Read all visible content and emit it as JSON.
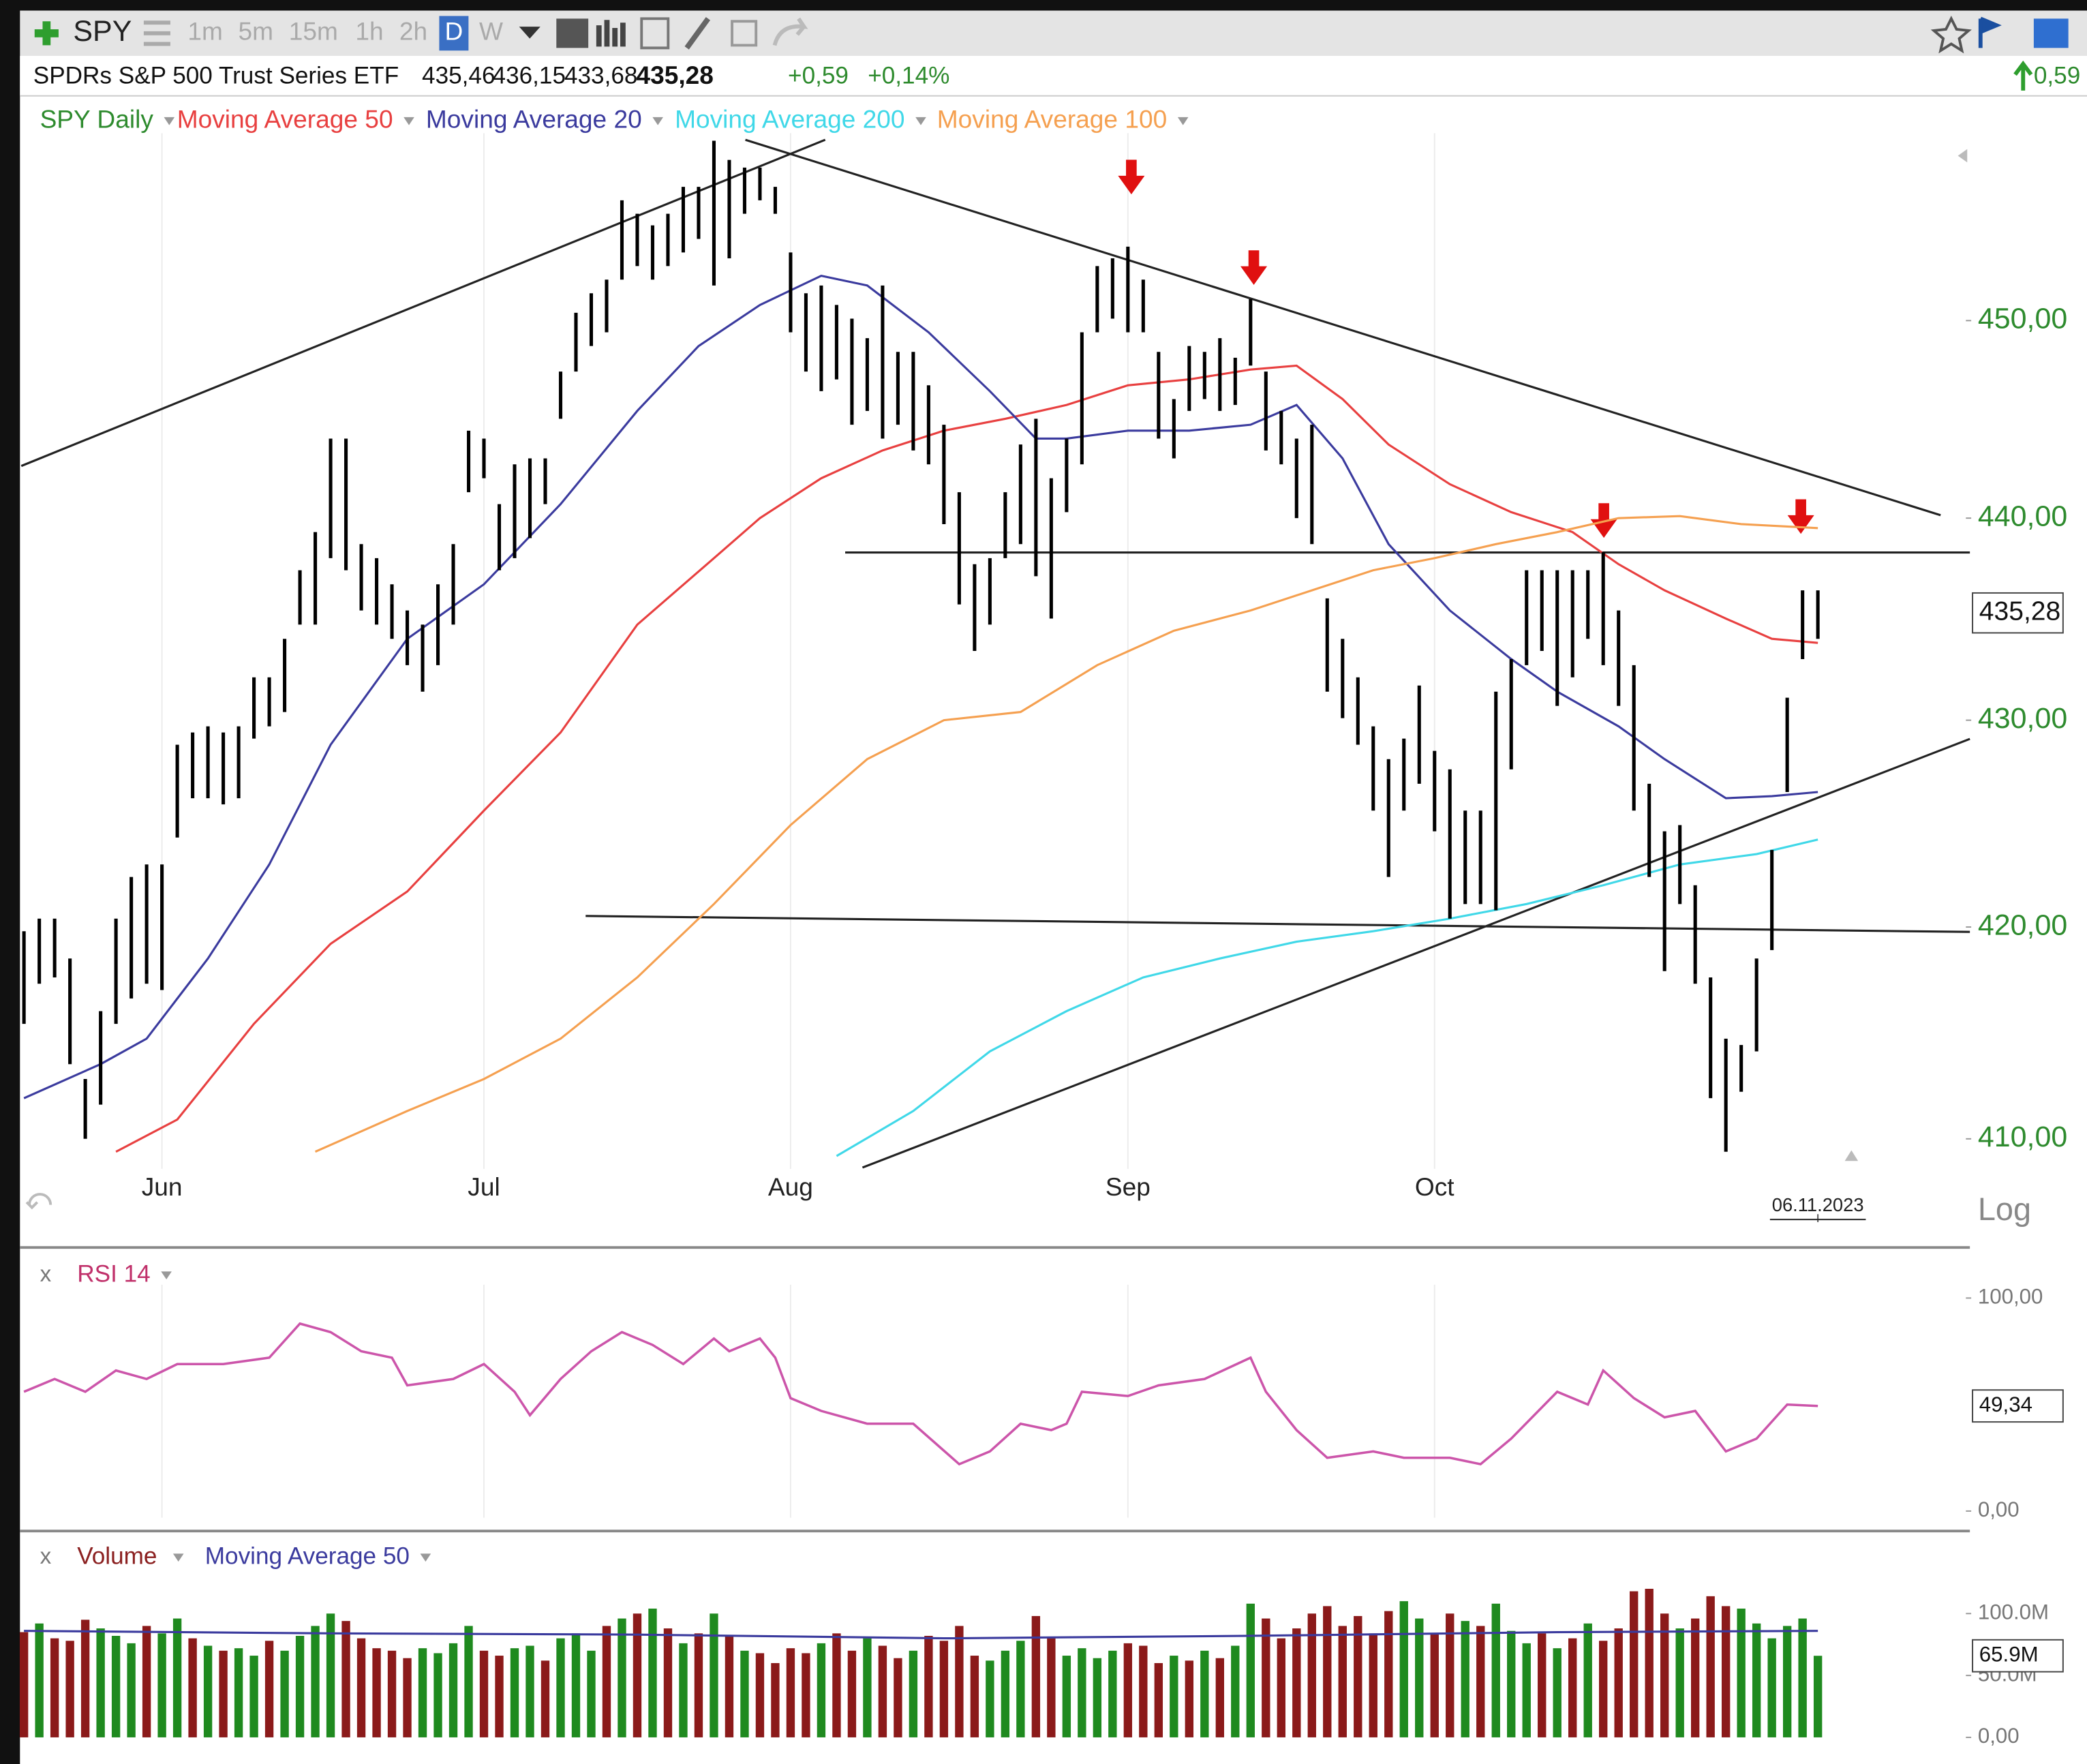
{
  "toolbar": {
    "symbol": "SPY",
    "intervals": [
      "1m",
      "5m",
      "15m",
      "1h",
      "2h",
      "D",
      "W"
    ]
  },
  "quote": {
    "name": "SPDRs S&P 500 Trust Series ETF",
    "open": "435,46",
    "high": "436,15",
    "low": "433,68",
    "last": "435,28",
    "change": "+0,59",
    "change_pct": "+0,14%",
    "change_right": "0,59"
  },
  "chart_data": [
    {
      "type": "ohlc",
      "name": "SPY Daily",
      "color": "#000000",
      "legend_color": "#2e8b2e",
      "log": true,
      "scale_label": "Log",
      "grid": true,
      "high": [
        419.8,
        420.4,
        420.4,
        418.5,
        412.8,
        416.0,
        420.4,
        422.4,
        423.0,
        423.0,
        428.8,
        429.4,
        429.7,
        429.4,
        429.7,
        432.1,
        432.1,
        434.0,
        437.4,
        439.3,
        444.0,
        444.0,
        438.7,
        438.0,
        436.7,
        435.4,
        434.7,
        436.7,
        438.7,
        444.4,
        444.0,
        440.7,
        442.7,
        443.0,
        443.0,
        447.4,
        450.4,
        451.4,
        452.1,
        456.2,
        455.5,
        454.9,
        455.5,
        456.9,
        456.9,
        459.3,
        458.3,
        457.9,
        457.9,
        456.9,
        453.5,
        451.4,
        451.8,
        450.8,
        450.1,
        449.1,
        451.8,
        448.4,
        448.4,
        446.7,
        444.7,
        441.3,
        437.7,
        438.0,
        441.3,
        443.7,
        445.0,
        442.0,
        444.0,
        449.4,
        452.8,
        453.2,
        453.8,
        452.1,
        448.4,
        446.0,
        448.7,
        448.4,
        449.1,
        448.1,
        451.1,
        447.4,
        445.4,
        444.0,
        444.7,
        436.0,
        434.0,
        432.1,
        429.7,
        428.1,
        429.1,
        431.7,
        428.5,
        427.6,
        425.6,
        425.6,
        431.4,
        433.0,
        437.4,
        437.4,
        437.4,
        437.4,
        437.4,
        438.3,
        435.4,
        432.7,
        426.9,
        424.6,
        424.9,
        422.0,
        417.6,
        414.7,
        414.4,
        418.5,
        423.7,
        431.1,
        436.4,
        436.4
      ],
      "low": [
        415.4,
        417.3,
        417.6,
        413.5,
        410.0,
        411.6,
        415.4,
        416.6,
        417.3,
        417.0,
        424.3,
        426.2,
        426.2,
        425.9,
        426.2,
        429.1,
        429.7,
        430.4,
        434.7,
        434.7,
        438.0,
        437.4,
        435.4,
        434.7,
        434.0,
        432.7,
        431.4,
        432.7,
        434.7,
        441.3,
        442.0,
        437.4,
        438.0,
        439.0,
        440.7,
        445.0,
        447.4,
        448.7,
        449.4,
        452.1,
        452.8,
        452.1,
        452.8,
        453.5,
        454.2,
        451.8,
        453.2,
        455.5,
        456.2,
        455.5,
        449.4,
        447.4,
        446.4,
        447.0,
        444.7,
        445.4,
        444.0,
        444.7,
        443.4,
        442.7,
        439.7,
        435.7,
        433.4,
        434.7,
        438.0,
        438.7,
        437.1,
        435.0,
        440.3,
        442.7,
        449.4,
        450.1,
        449.4,
        449.4,
        444.0,
        443.0,
        445.4,
        446.0,
        445.4,
        445.7,
        447.7,
        443.4,
        442.7,
        440.0,
        438.7,
        431.4,
        430.1,
        428.8,
        425.6,
        422.4,
        425.6,
        426.9,
        424.6,
        420.4,
        421.1,
        421.1,
        420.8,
        427.6,
        432.7,
        433.4,
        430.7,
        432.1,
        434.0,
        432.7,
        430.7,
        425.6,
        422.4,
        417.9,
        421.1,
        417.3,
        411.9,
        409.4,
        412.2,
        414.1,
        418.9,
        426.5,
        433.0,
        434.0
      ],
      "last_value": 435.28,
      "last_value_label": "435,28",
      "xlim": [
        0,
        127
      ],
      "xticks": [
        {
          "value": 9,
          "label": "Jun"
        },
        {
          "value": 30,
          "label": "Jul"
        },
        {
          "value": 50,
          "label": "Aug"
        },
        {
          "value": 72,
          "label": "Sep"
        },
        {
          "value": 92,
          "label": "Oct"
        },
        {
          "value": 117,
          "label": "06.11.2023"
        }
      ],
      "ylim": [
        408.6,
        459.7
      ],
      "yticks": [
        {
          "value": 410,
          "label": "410,00"
        },
        {
          "value": 420,
          "label": "420,00"
        },
        {
          "value": 430,
          "label": "430,00"
        },
        {
          "value": 440,
          "label": "440,00"
        },
        {
          "value": 450,
          "label": "450,00"
        }
      ],
      "overlays": [
        {
          "name": "Moving Average 50",
          "color": "#e84040",
          "x": [
            6,
            10,
            15,
            20,
            25,
            30,
            35,
            40,
            45,
            48,
            52,
            56,
            60,
            64,
            68,
            72,
            76,
            80,
            83,
            86,
            89,
            93,
            97,
            101,
            104,
            107,
            111,
            114,
            117
          ],
          "values": [
            409.4,
            410.9,
            415.4,
            419.2,
            421.7,
            425.6,
            429.4,
            434.7,
            438.0,
            440.0,
            442.0,
            443.4,
            444.4,
            445.0,
            445.7,
            446.7,
            447.0,
            447.5,
            447.7,
            446.0,
            443.7,
            441.7,
            440.3,
            439.3,
            437.7,
            436.4,
            435.0,
            434.0,
            433.8
          ]
        },
        {
          "name": "Moving Average 20",
          "color": "#3b3b9e",
          "x": [
            0,
            5,
            8,
            12,
            16,
            20,
            25,
            30,
            35,
            40,
            44,
            48,
            52,
            55,
            59,
            63,
            66,
            68,
            72,
            76,
            80,
            83,
            86,
            89,
            93,
            97,
            100,
            104,
            107,
            111,
            114,
            117
          ],
          "values": [
            411.9,
            413.5,
            414.7,
            418.5,
            423.0,
            428.8,
            434.0,
            436.7,
            440.7,
            445.4,
            448.7,
            450.8,
            452.3,
            451.8,
            449.4,
            446.4,
            444.0,
            444.0,
            444.4,
            444.4,
            444.7,
            445.7,
            443.0,
            438.7,
            435.4,
            433.0,
            431.4,
            429.7,
            428.1,
            426.2,
            426.3,
            426.5
          ]
        },
        {
          "name": "Moving Average 200",
          "color": "#40d8e8",
          "x": [
            53,
            58,
            63,
            68,
            73,
            78,
            83,
            88,
            93,
            98,
            103,
            108,
            113,
            117
          ],
          "values": [
            409.2,
            411.3,
            414.1,
            416.0,
            417.6,
            418.5,
            419.3,
            419.8,
            420.4,
            421.1,
            422.0,
            423.0,
            423.5,
            424.2
          ]
        },
        {
          "name": "Moving Average 100",
          "color": "#f5a050",
          "x": [
            19,
            25,
            30,
            35,
            40,
            45,
            50,
            55,
            60,
            65,
            70,
            75,
            80,
            84,
            88,
            92,
            96,
            100,
            104,
            108,
            112,
            117
          ],
          "values": [
            409.4,
            411.3,
            412.8,
            414.7,
            417.6,
            421.1,
            424.9,
            428.1,
            430.0,
            430.4,
            432.7,
            434.4,
            435.4,
            436.4,
            437.4,
            438.0,
            438.7,
            439.3,
            440.0,
            440.1,
            439.7,
            439.5
          ]
        }
      ]
    },
    {
      "type": "line",
      "name": "RSI 14",
      "close_label": "x",
      "color": "#cc55aa",
      "x": [
        0,
        2,
        4,
        6,
        8,
        10,
        13,
        16,
        18,
        20,
        22,
        24,
        25,
        28,
        30,
        32,
        33,
        35,
        37,
        39,
        41,
        43,
        45,
        46,
        48,
        49,
        50,
        52,
        55,
        58,
        61,
        63,
        65,
        67,
        68,
        69,
        72,
        74,
        77,
        80,
        81,
        83,
        85,
        88,
        90,
        93,
        95,
        97,
        100,
        102,
        103,
        105,
        107,
        109,
        111,
        113,
        115,
        117
      ],
      "values": [
        56,
        62,
        56,
        66,
        62,
        69,
        69,
        72,
        88,
        84,
        75,
        72,
        59,
        62,
        69,
        56,
        45,
        62,
        75,
        84,
        78,
        69,
        81,
        75,
        81,
        72,
        53,
        47,
        41,
        41,
        22,
        28,
        41,
        38,
        41,
        56,
        54,
        59,
        62,
        72,
        56,
        38,
        25,
        28,
        25,
        25,
        22,
        34,
        56,
        50,
        66,
        53,
        44,
        47,
        28,
        34,
        50,
        49.34
      ],
      "last_value": 49.34,
      "last_value_label": "49,34",
      "xlim": [
        0,
        127
      ],
      "ylim": [
        0,
        100
      ],
      "yticks": [
        {
          "value": 100,
          "label": "100,00"
        },
        {
          "value": 0,
          "label": "0,00"
        }
      ]
    },
    {
      "type": "bar",
      "name": "Volume",
      "close_label": "x",
      "colors": {
        "up": "#1f8a1f",
        "down": "#8b1a1a"
      },
      "values": [
        85,
        92,
        80,
        78,
        95,
        88,
        82,
        76,
        90,
        84,
        96,
        80,
        74,
        70,
        72,
        66,
        78,
        70,
        82,
        90,
        100,
        94,
        80,
        72,
        70,
        64,
        72,
        68,
        76,
        90,
        70,
        66,
        72,
        74,
        62,
        80,
        84,
        70,
        90,
        96,
        100,
        104,
        88,
        76,
        84,
        100,
        82,
        70,
        68,
        60,
        72,
        68,
        76,
        84,
        70,
        80,
        74,
        64,
        70,
        82,
        78,
        90,
        66,
        62,
        70,
        78,
        98,
        80,
        66,
        72,
        64,
        70,
        76,
        74,
        60,
        66,
        62,
        70,
        64,
        74,
        108,
        96,
        80,
        88,
        100,
        106,
        90,
        98,
        84,
        102,
        110,
        96,
        84,
        100,
        94,
        90,
        108,
        86,
        76,
        84,
        72,
        80,
        92,
        78,
        88,
        118,
        120,
        100,
        88,
        96,
        114,
        106,
        104,
        92,
        80,
        90,
        96,
        65.9
      ],
      "up": [
        0,
        1,
        0,
        0,
        0,
        1,
        1,
        1,
        0,
        1,
        1,
        0,
        1,
        0,
        1,
        1,
        0,
        1,
        1,
        1,
        1,
        0,
        0,
        0,
        0,
        0,
        1,
        1,
        1,
        1,
        0,
        0,
        1,
        1,
        0,
        1,
        1,
        1,
        0,
        1,
        0,
        1,
        0,
        1,
        0,
        1,
        0,
        1,
        0,
        0,
        0,
        0,
        1,
        0,
        0,
        1,
        0,
        0,
        1,
        0,
        0,
        0,
        0,
        1,
        1,
        1,
        0,
        0,
        1,
        1,
        1,
        1,
        0,
        0,
        0,
        1,
        0,
        1,
        0,
        1,
        1,
        0,
        0,
        0,
        0,
        0,
        0,
        0,
        0,
        0,
        1,
        1,
        0,
        0,
        1,
        0,
        1,
        1,
        1,
        0,
        1,
        0,
        1,
        0,
        0,
        0,
        0,
        0,
        1,
        0,
        0,
        0,
        1,
        1,
        1,
        1,
        1,
        1
      ],
      "last_value": 65.9,
      "last_value_label": "65.9M",
      "xlim": [
        0,
        127
      ],
      "ylim": [
        0,
        100
      ],
      "yticks": [
        {
          "value": 100,
          "label": "100.0M"
        },
        {
          "value": 50,
          "label": "50.0M"
        },
        {
          "value": 0,
          "label": "0,00"
        }
      ],
      "overlays": [
        {
          "name": "Moving Average 50",
          "color": "#3b3b9e",
          "x": [
            0,
            20,
            40,
            60,
            80,
            100,
            117
          ],
          "values": [
            86,
            84,
            83,
            80,
            82,
            85,
            86
          ]
        }
      ]
    }
  ]
}
